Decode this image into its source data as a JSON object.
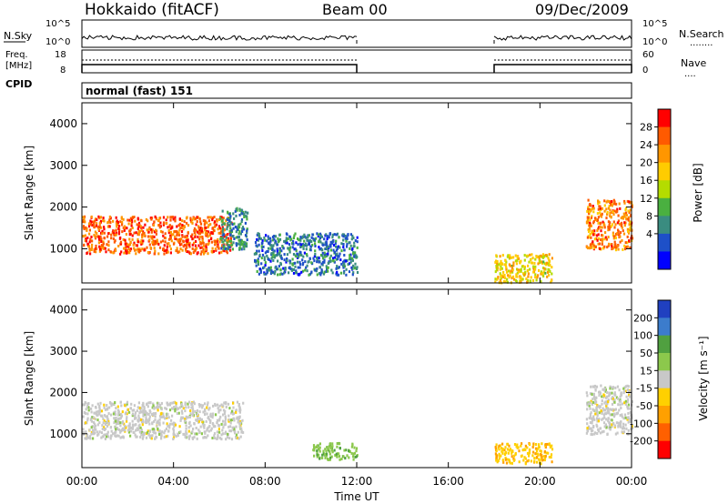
{
  "header": {
    "station": "Hokkaido (fitACF)",
    "beam": "Beam 00",
    "date": "09/Dec/2009"
  },
  "noise_panel": {
    "left_label": "N.Sky",
    "right_label": "N.Search",
    "right_legend": "........",
    "left_ticks": [
      "10^5",
      "10^0"
    ],
    "right_ticks": [
      "10^5",
      "10^0"
    ]
  },
  "freq_panel": {
    "left_label_1": "Freq.",
    "left_label_2": "[MHz]",
    "right_label": "Nave",
    "right_legend": "....",
    "left_ticks": [
      "18",
      "8"
    ],
    "right_ticks": [
      "60",
      "0"
    ]
  },
  "cpid_panel": {
    "label": "CPID",
    "mode_text": "normal (fast) 151"
  },
  "power_panel": {
    "ylabel": "Slant Range [km]",
    "yticks": [
      "4000",
      "3000",
      "2000",
      "1000"
    ],
    "colorbar_label": "Power [dB]",
    "colorbar_ticks": [
      "28",
      "24",
      "20",
      "16",
      "12",
      "8",
      "4"
    ],
    "colorbar_colors": [
      "#ff0000",
      "#ff5a00",
      "#ff9600",
      "#ffcc00",
      "#b4dc00",
      "#4ab040",
      "#3a8c80",
      "#1e50c8",
      "#0000ff"
    ]
  },
  "velocity_panel": {
    "ylabel": "Slant Range [km]",
    "yticks": [
      "4000",
      "3000",
      "2000",
      "1000"
    ],
    "colorbar_label": "Velocity [m s⁻¹]",
    "colorbar_ticks": [
      "200",
      "100",
      "50",
      "15",
      "-15",
      "-50",
      "-100",
      "-200"
    ],
    "colorbar_colors": [
      "#2040c0",
      "#3c7ccc",
      "#50a040",
      "#8cc84c",
      "#c8c8c8",
      "#ffd000",
      "#ffa000",
      "#ff6000",
      "#ff0000"
    ]
  },
  "time_axis": {
    "label": "Time UT",
    "ticks": [
      "00:00",
      "04:00",
      "08:00",
      "12:00",
      "16:00",
      "20:00",
      "00:00"
    ]
  },
  "chart_data": [
    {
      "type": "heatmap",
      "title": "Power [dB]",
      "xlabel": "Time UT",
      "ylabel": "Slant Range [km]",
      "xlim": [
        0,
        24
      ],
      "ylim": [
        180,
        4500
      ],
      "colorbar_range": [
        0,
        30
      ],
      "data_gaps_hours": [
        [
          12,
          18
        ]
      ],
      "regions": [
        {
          "t": [
            0.0,
            6.5
          ],
          "range": [
            900,
            1800
          ],
          "value_db": 26
        },
        {
          "t": [
            6.0,
            7.2
          ],
          "range": [
            1000,
            2000
          ],
          "value_db": 8
        },
        {
          "t": [
            7.5,
            12.0
          ],
          "range": [
            400,
            1400
          ],
          "value_db": 6
        },
        {
          "t": [
            18.0,
            20.5
          ],
          "range": [
            200,
            900
          ],
          "value_db": 18
        },
        {
          "t": [
            22.0,
            24.0
          ],
          "range": [
            1000,
            2200
          ],
          "value_db": 24
        }
      ]
    },
    {
      "type": "heatmap",
      "title": "Velocity [m s-1]",
      "xlabel": "Time UT",
      "ylabel": "Slant Range [km]",
      "xlim": [
        0,
        24
      ],
      "ylim": [
        180,
        4500
      ],
      "colorbar_range": [
        -200,
        200
      ],
      "data_gaps_hours": [
        [
          12,
          18
        ]
      ],
      "regions": [
        {
          "t": [
            0.0,
            7.0
          ],
          "range": [
            900,
            1800
          ],
          "value_ms": 0
        },
        {
          "t": [
            10.0,
            12.0
          ],
          "range": [
            400,
            800
          ],
          "value_ms": 60
        },
        {
          "t": [
            18.0,
            20.5
          ],
          "range": [
            300,
            800
          ],
          "value_ms": -60
        },
        {
          "t": [
            22.0,
            24.0
          ],
          "range": [
            1000,
            2200
          ],
          "value_ms": 0
        }
      ]
    }
  ]
}
